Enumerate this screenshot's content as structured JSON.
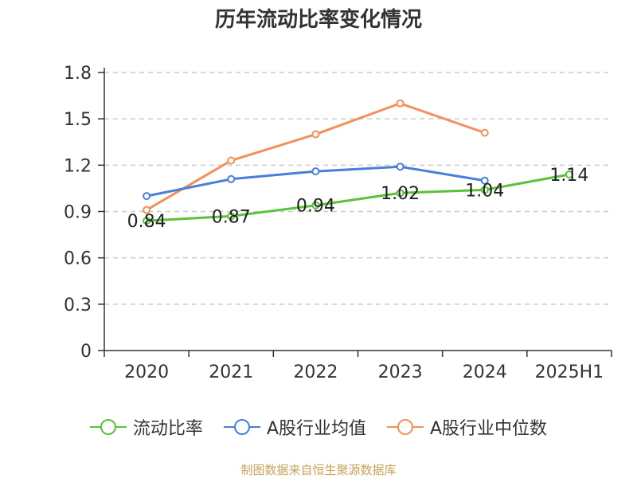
{
  "chart_data": {
    "type": "line",
    "title": "历年流动比率变化情况",
    "categories": [
      "2020",
      "2021",
      "2022",
      "2023",
      "2024",
      "2025H1"
    ],
    "ylim": [
      0,
      1.8
    ],
    "yticks": [
      "0",
      "0.3",
      "0.6",
      "0.9",
      "1.2",
      "1.5",
      "1.8"
    ],
    "ytick_values": [
      0,
      0.3,
      0.6,
      0.9,
      1.2,
      1.5,
      1.8
    ],
    "grid": true,
    "legend_position": "bottom",
    "series": [
      {
        "name": "流动比率",
        "color": "#5ac13a",
        "values": [
          0.84,
          0.87,
          0.94,
          1.02,
          1.04,
          1.14
        ],
        "labels": [
          "0.84",
          "0.87",
          "0.94",
          "1.02",
          "1.04",
          "1.14"
        ]
      },
      {
        "name": "A股行业均值",
        "color": "#4a7fd8",
        "values": [
          1.0,
          1.11,
          1.16,
          1.19,
          1.1,
          null
        ]
      },
      {
        "name": "A股行业中位数",
        "color": "#f58f5a",
        "values": [
          0.91,
          1.23,
          1.4,
          1.6,
          1.41,
          null
        ]
      }
    ]
  },
  "source_note": "制图数据来自恒生聚源数据库"
}
